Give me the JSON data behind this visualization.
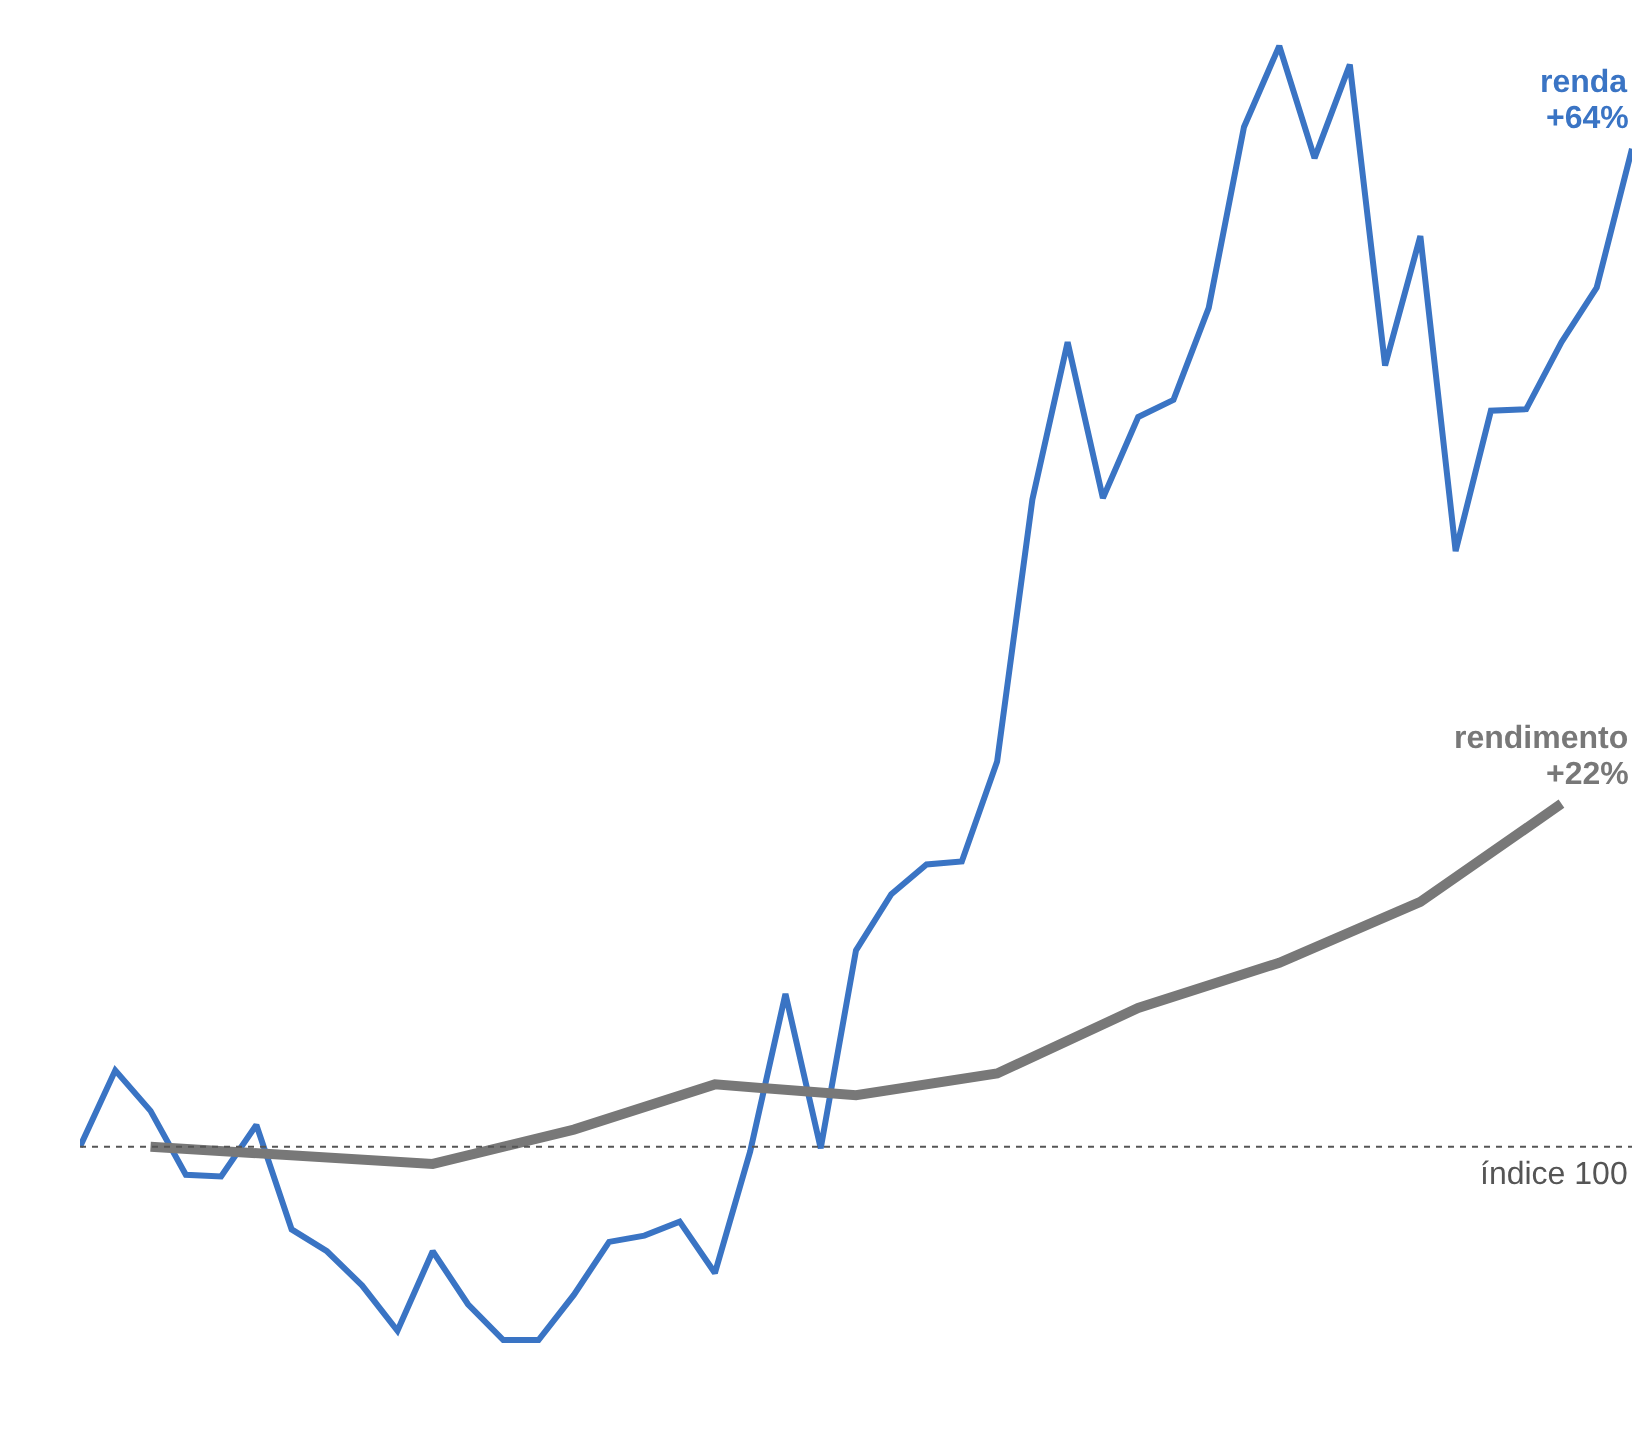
{
  "chart_data": {
    "type": "line",
    "tick_labels": false,
    "legend": false,
    "marker": "none",
    "line_style": "solid",
    "categories": [
      null,
      null,
      null,
      null,
      null,
      null,
      null,
      null,
      null,
      null,
      null,
      null,
      null,
      null,
      null,
      null,
      null,
      null,
      null,
      null,
      null,
      null,
      null,
      null,
      null,
      null,
      null,
      null,
      null,
      null,
      null,
      null,
      null,
      null,
      null,
      null,
      null,
      null,
      null,
      null,
      null,
      null,
      null,
      null,
      null
    ],
    "series": [
      {
        "name": "renda",
        "color": "#3a74c4",
        "values": [
          0,
          4.9,
          2.3,
          -1.8,
          -1.9,
          1.4,
          -5.3,
          -6.7,
          -8.9,
          -11.8,
          -6.7,
          -10.1,
          -12.4,
          -12.4,
          -9.5,
          -6.1,
          -5.7,
          -4.8,
          -8.1,
          -0.3,
          9.8,
          -0.1,
          12.6,
          16.2,
          18.1,
          18.3,
          24.7,
          41.5,
          51.6,
          41.6,
          46.8,
          47.9,
          53.8,
          65.4,
          70.6,
          63.4,
          69.4,
          50.1,
          58.4,
          38.2,
          47.2,
          47.3,
          51.6,
          55.1,
          64
        ],
        "value_labels": [
          null,
          null,
          null,
          null,
          null,
          null,
          null,
          null,
          null,
          null,
          null,
          null,
          null,
          null,
          null,
          null,
          null,
          null,
          null,
          null,
          null,
          null,
          null,
          null,
          null,
          null,
          null,
          null,
          null,
          null,
          null,
          null,
          null,
          null,
          null,
          null,
          null,
          null,
          null,
          null,
          null,
          null,
          null,
          null,
          "+64%"
        ]
      },
      {
        "name": "rendimento",
        "color": "#787878",
        "values": [
          null,
          null,
          0,
          null,
          null,
          null,
          null,
          null,
          null,
          null,
          -1.1,
          null,
          null,
          null,
          1.1,
          null,
          null,
          null,
          4.0,
          null,
          null,
          null,
          3.3,
          null,
          null,
          null,
          4.7,
          null,
          null,
          null,
          8.9,
          null,
          null,
          null,
          11.8,
          null,
          null,
          null,
          15.7,
          null,
          null,
          null,
          22,
          null,
          null
        ],
        "value_labels": [
          null,
          null,
          null,
          null,
          null,
          null,
          null,
          null,
          null,
          null,
          null,
          null,
          null,
          null,
          null,
          null,
          null,
          null,
          null,
          null,
          null,
          null,
          null,
          null,
          null,
          null,
          null,
          null,
          null,
          null,
          null,
          null,
          null,
          null,
          null,
          null,
          null,
          null,
          null,
          null,
          null,
          null,
          "+22%",
          null,
          null
        ]
      }
    ],
    "ref_lines": [
      {
        "axis": "y",
        "value": 0,
        "label": "índice 100",
        "color": "#555555",
        "line_style": "dotted"
      }
    ]
  }
}
